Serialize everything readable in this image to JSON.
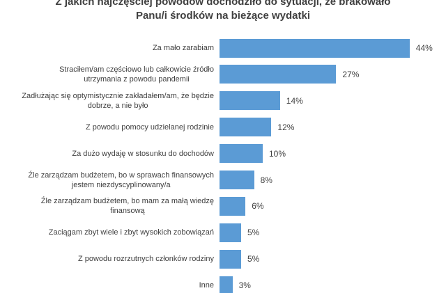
{
  "chart_data": {
    "type": "bar",
    "orientation": "horizontal",
    "title": [
      "Z jakich najczęściej powodów dochodziło do sytuacji, że brakowało",
      "Panu/i środków na bieżące wydatki"
    ],
    "categories": [
      "Za mało zarabiam",
      "Straciłem/am częściowo lub całkowicie źródło\nutrzymania z powodu pandemii",
      "Zadłużając się optymistycznie zakładałem/am, że będzie\ndobrze, a nie było",
      "Z powodu pomocy udzielanej rodzinie",
      "Za dużo wydaję w stosunku do dochodów",
      "Źle zarządzam budżetem, bo w sprawach finansowych\njestem niezdyscyplinowany/a",
      "Źle zarządzam budżetem, bo mam za małą wiedzę\nfinansową",
      "Zaciągam zbyt wiele i zbyt wysokich zobowiązań",
      "Z powodu rozrzutnych członków rodziny",
      "Inne"
    ],
    "values": [
      44,
      27,
      14,
      12,
      10,
      8,
      6,
      5,
      5,
      3
    ],
    "value_labels": [
      "44%",
      "27%",
      "14%",
      "12%",
      "10%",
      "8%",
      "6%",
      "5%",
      "5%",
      "3%"
    ],
    "color": "#5b9bd5"
  }
}
